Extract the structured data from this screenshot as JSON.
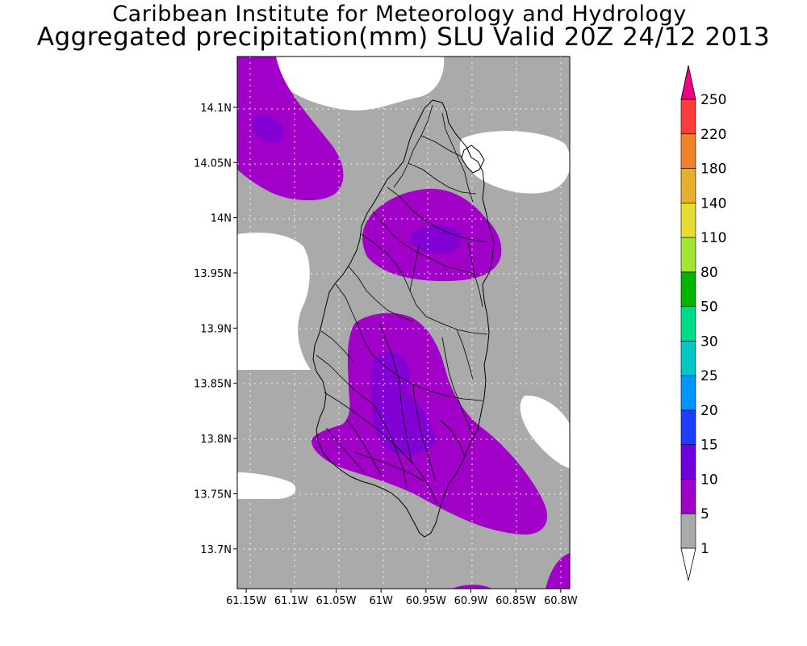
{
  "titles": {
    "line1": "Caribbean Institute for Meteorology and Hydrology",
    "line2": "Aggregated precipitation(mm) SLU Valid 20Z 24/12 2013"
  },
  "map": {
    "lon_range": [
      -61.16,
      -60.79
    ],
    "lat_range": [
      13.664,
      14.146
    ],
    "lon_ticks": [
      {
        "value": -61.15,
        "label": "61.15W"
      },
      {
        "value": -61.1,
        "label": "61.1W"
      },
      {
        "value": -61.05,
        "label": "61.05W"
      },
      {
        "value": -61.0,
        "label": "61W"
      },
      {
        "value": -60.95,
        "label": "60.95W"
      },
      {
        "value": -60.9,
        "label": "60.9W"
      },
      {
        "value": -60.85,
        "label": "60.85W"
      },
      {
        "value": -60.8,
        "label": "60.8W"
      }
    ],
    "lat_ticks": [
      {
        "value": 14.1,
        "label": "14.1N"
      },
      {
        "value": 14.05,
        "label": "14.05N"
      },
      {
        "value": 14.0,
        "label": "14N"
      },
      {
        "value": 13.95,
        "label": "13.95N"
      },
      {
        "value": 13.9,
        "label": "13.9N"
      },
      {
        "value": 13.85,
        "label": "13.85N"
      },
      {
        "value": 13.8,
        "label": "13.8N"
      },
      {
        "value": 13.75,
        "label": "13.75N"
      },
      {
        "value": 13.7,
        "label": "13.7N"
      }
    ],
    "grid": true,
    "background_class_color": "#aaaaaa"
  },
  "legend": {
    "classes": [
      {
        "label": "1",
        "color": "#ffffff"
      },
      {
        "label": "5",
        "color": "#aaaaaa"
      },
      {
        "label": "10",
        "color": "#a000c8"
      },
      {
        "label": "15",
        "color": "#6e00dc"
      },
      {
        "label": "20",
        "color": "#1e3cff"
      },
      {
        "label": "25",
        "color": "#0096ff"
      },
      {
        "label": "30",
        "color": "#00c8c8"
      },
      {
        "label": "50",
        "color": "#00dc8c"
      },
      {
        "label": "80",
        "color": "#00b400"
      },
      {
        "label": "110",
        "color": "#a0e632"
      },
      {
        "label": "140",
        "color": "#e6dc32"
      },
      {
        "label": "180",
        "color": "#e6af2d"
      },
      {
        "label": "220",
        "color": "#f08228"
      },
      {
        "label": "250",
        "color": "#fa3c3c"
      }
    ],
    "over_color": "#f00082",
    "under_color": "#ffffff"
  }
}
